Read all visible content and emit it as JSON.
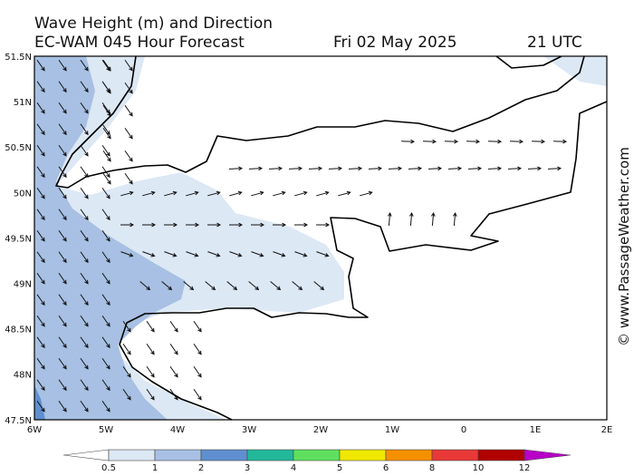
{
  "header": {
    "title": "Wave Height (m) and Direction",
    "model": "EC-WAM 045 Hour Forecast",
    "date": "Fri 02 May 2025",
    "time": "21 UTC"
  },
  "map": {
    "lat_labels": [
      "51.5N",
      "51N",
      "50.5N",
      "50N",
      "49.5N",
      "49N",
      "48.5N",
      "48N",
      "47.5N"
    ],
    "lon_labels": [
      "6W",
      "5W",
      "4W",
      "3W",
      "2W",
      "1W",
      "0",
      "1E",
      "2E"
    ]
  },
  "colorbar": {
    "labels": [
      "0.5",
      "1",
      "2",
      "3",
      "4",
      "5",
      "6",
      "8",
      "10",
      "12"
    ],
    "colors": [
      "#ffffff",
      "#dde8f5",
      "#a7c0e3",
      "#5f8fd0",
      "#22b89a",
      "#5ee05e",
      "#f0e800",
      "#f59000",
      "#e83838",
      "#b00000",
      "#b800c8"
    ]
  },
  "credit": "© www.PassageWeather.com"
}
